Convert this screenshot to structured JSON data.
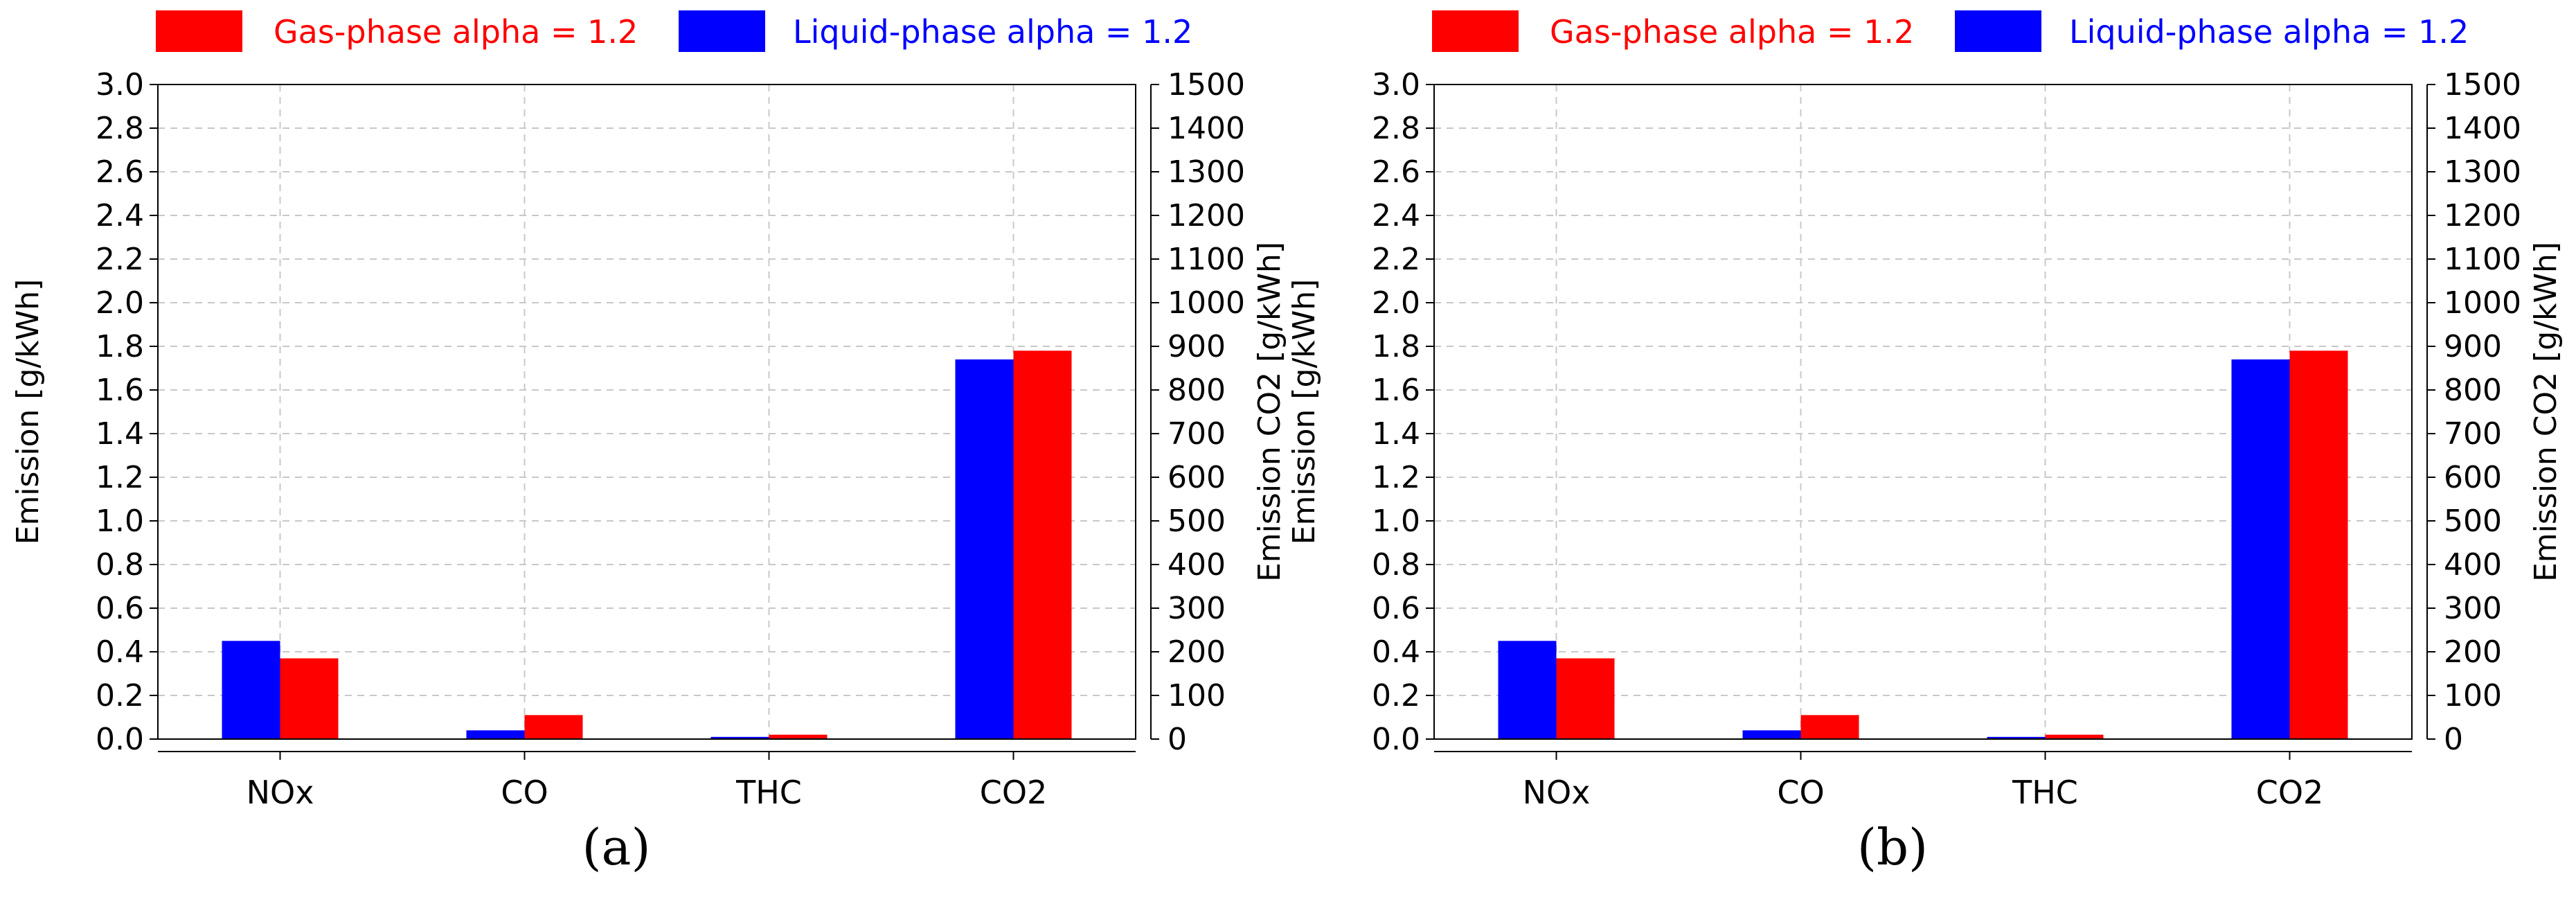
{
  "legend": {
    "gas_label": "Gas-phase alpha = 1.2",
    "liquid_label": "Liquid-phase alpha = 1.2",
    "gas_color": "#ff0000",
    "liquid_color": "#0000ff"
  },
  "chart_data": [
    {
      "type": "bar",
      "panel_label": "(a)",
      "categories": [
        "NOx",
        "CO",
        "THC",
        "CO2"
      ],
      "series": [
        {
          "name": "Liquid-phase alpha = 1.2",
          "color": "#0000ff",
          "values": [
            0.45,
            0.04,
            0.01,
            870
          ],
          "axis": [
            "left",
            "left",
            "left",
            "right"
          ]
        },
        {
          "name": "Gas-phase alpha = 1.2",
          "color": "#ff0000",
          "values": [
            0.37,
            0.11,
            0.02,
            890
          ],
          "axis": [
            "left",
            "left",
            "left",
            "right"
          ]
        }
      ],
      "ylabel": "Emission [g/kWh]",
      "y2label": "Emission CO2 [g/kWh]",
      "ylim": [
        0,
        3.0
      ],
      "y2lim": [
        0,
        1500
      ],
      "yticks": [
        "0.0",
        "0.2",
        "0.4",
        "0.6",
        "0.8",
        "1.0",
        "1.2",
        "1.4",
        "1.6",
        "1.8",
        "2.0",
        "2.2",
        "2.4",
        "2.6",
        "2.8",
        "3.0"
      ],
      "y2ticks": [
        "0",
        "100",
        "200",
        "300",
        "400",
        "500",
        "600",
        "700",
        "800",
        "900",
        "1000",
        "1100",
        "1200",
        "1300",
        "1400",
        "1500"
      ],
      "grid": true,
      "legend_position": "top"
    },
    {
      "type": "bar",
      "panel_label": "(b)",
      "categories": [
        "NOx",
        "CO",
        "THC",
        "CO2"
      ],
      "series": [
        {
          "name": "Liquid-phase alpha = 1.2",
          "color": "#0000ff",
          "values": [
            0.45,
            0.04,
            0.01,
            870
          ],
          "axis": [
            "left",
            "left",
            "left",
            "right"
          ]
        },
        {
          "name": "Gas-phase alpha = 1.2",
          "color": "#ff0000",
          "values": [
            0.37,
            0.11,
            0.02,
            890
          ],
          "axis": [
            "left",
            "left",
            "left",
            "right"
          ]
        }
      ],
      "ylabel": "Emission [g/kWh]",
      "y2label": "Emission CO2 [g/kWh]",
      "ylim": [
        0,
        3.0
      ],
      "y2lim": [
        0,
        1500
      ],
      "yticks": [
        "0.0",
        "0.2",
        "0.4",
        "0.6",
        "0.8",
        "1.0",
        "1.2",
        "1.4",
        "1.6",
        "1.8",
        "2.0",
        "2.2",
        "2.4",
        "2.6",
        "2.8",
        "3.0"
      ],
      "y2ticks": [
        "0",
        "100",
        "200",
        "300",
        "400",
        "500",
        "600",
        "700",
        "800",
        "900",
        "1000",
        "1100",
        "1200",
        "1300",
        "1400",
        "1500"
      ],
      "grid": true,
      "legend_position": "top"
    }
  ]
}
